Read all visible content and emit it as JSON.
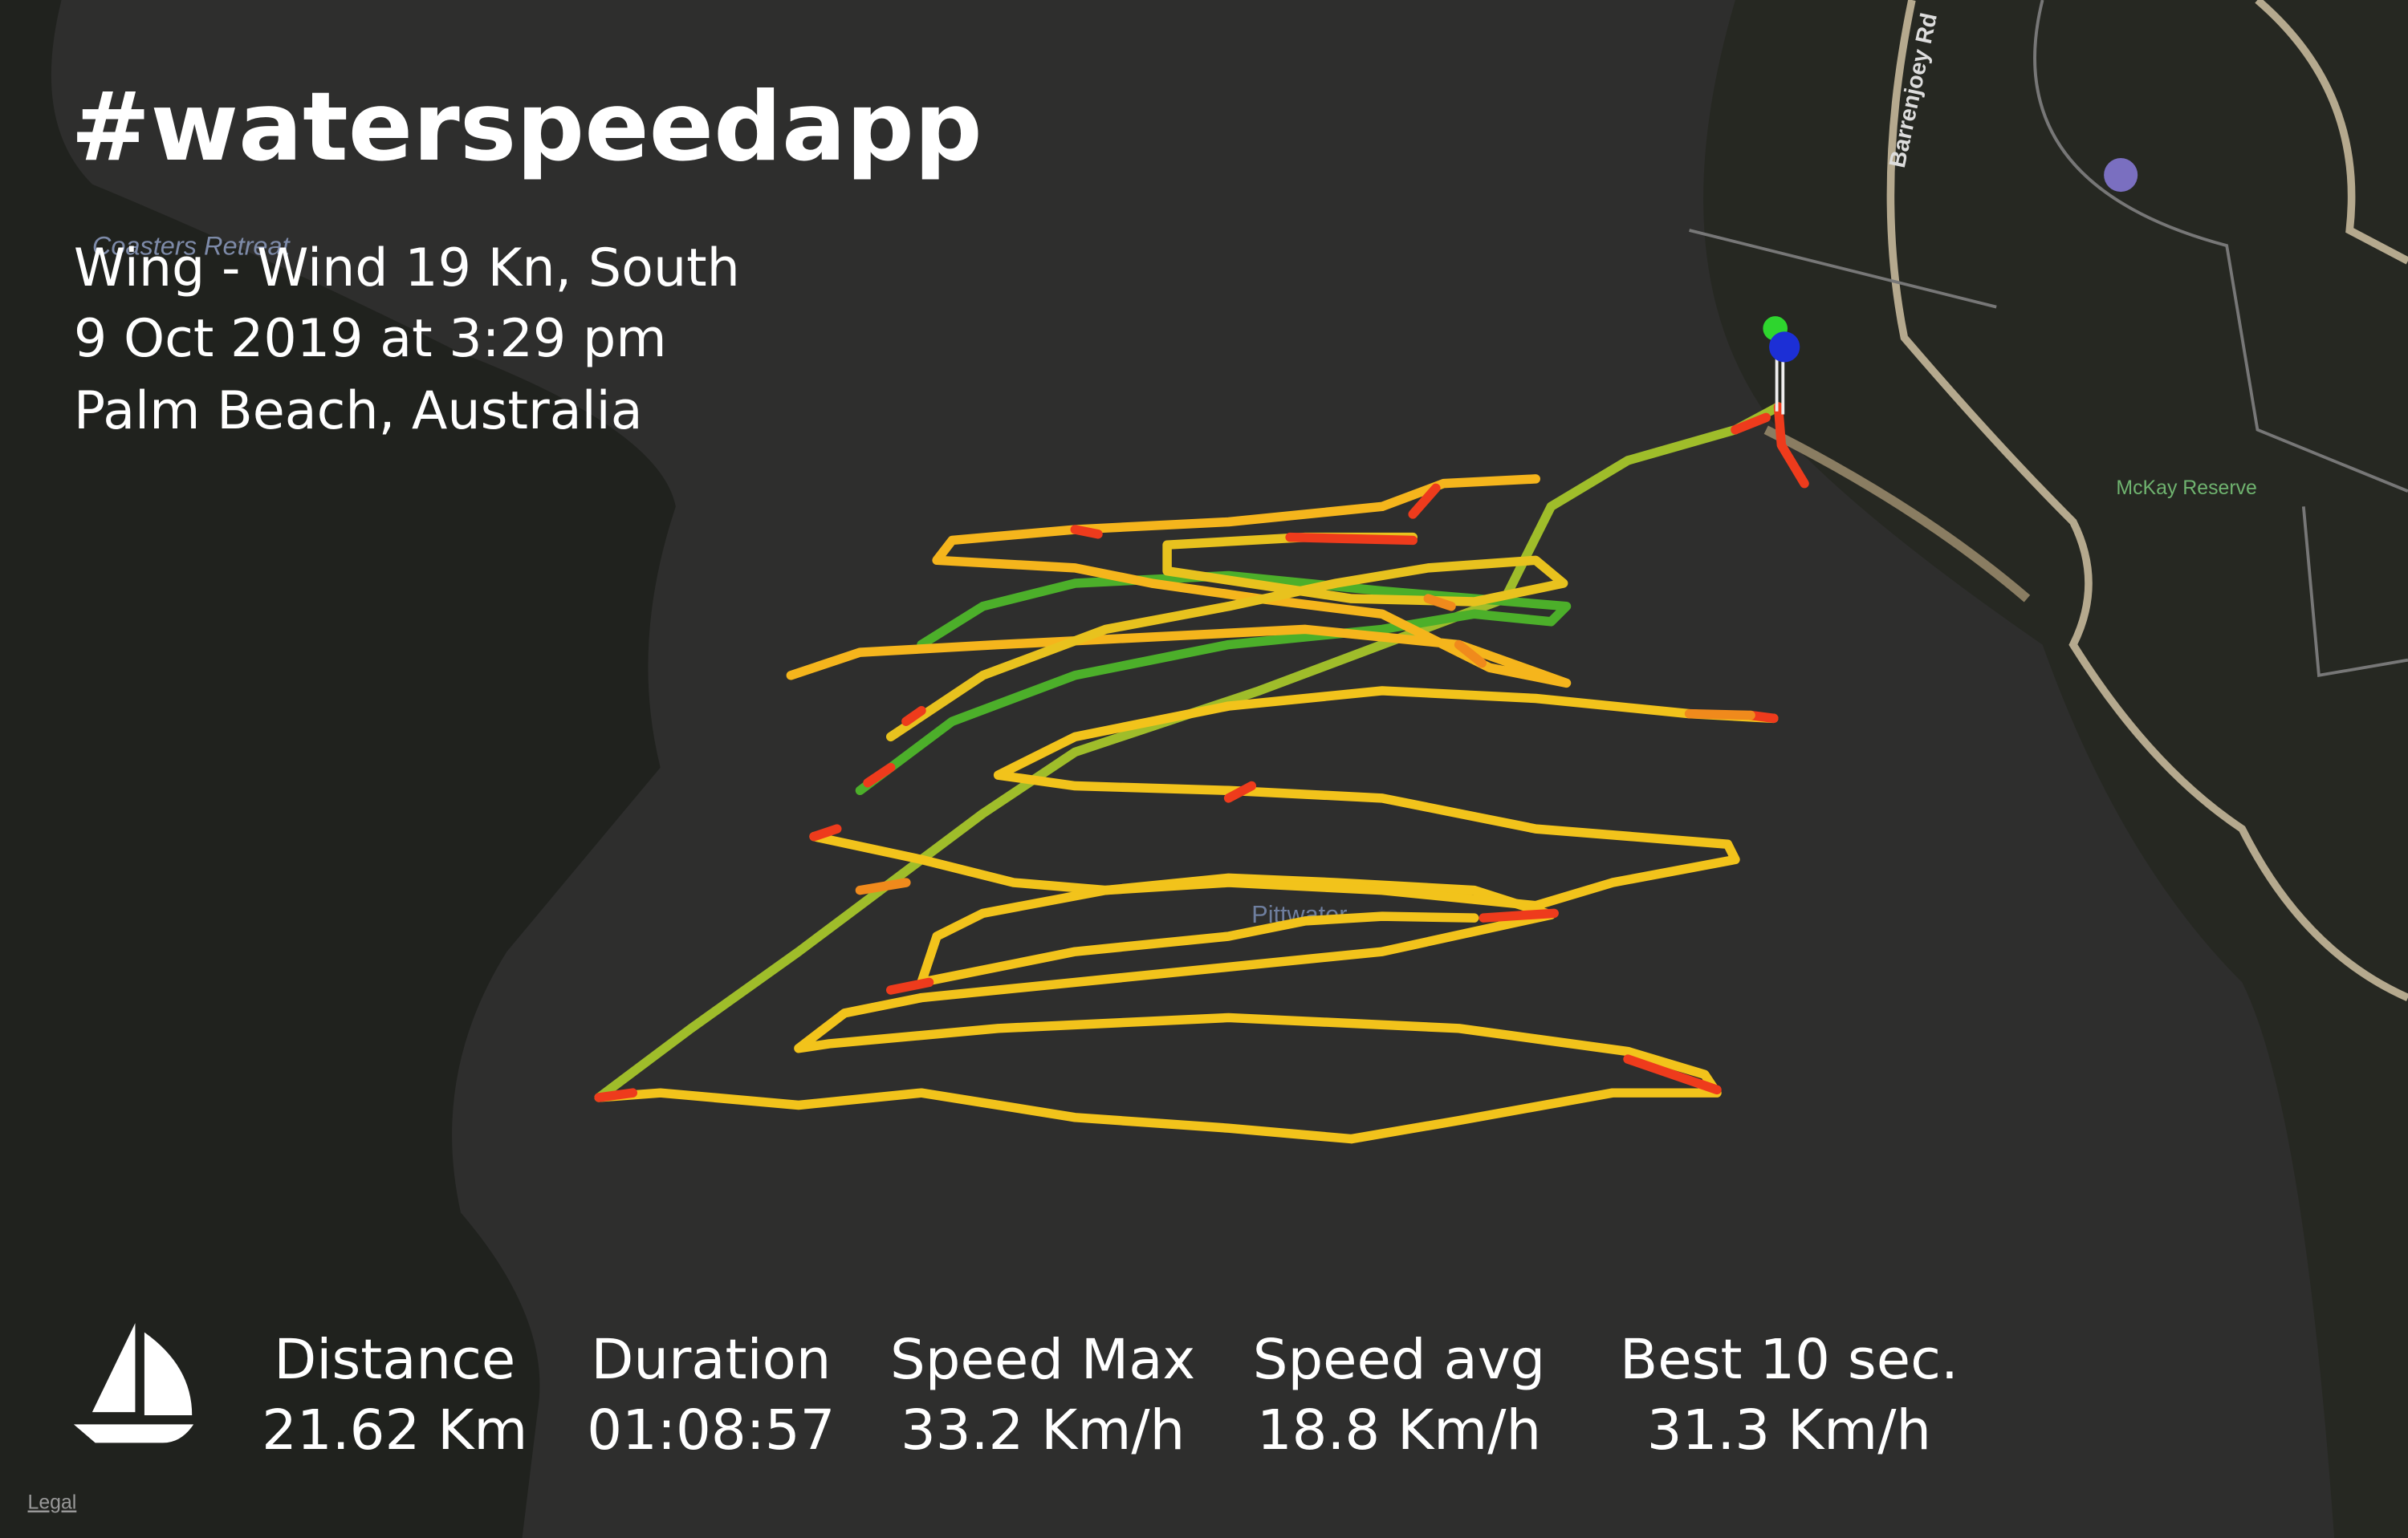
{
  "header": {
    "title": "#waterspeedapp",
    "lines": [
      "Wing - Wind 19 Kn, South",
      "9 Oct 2019 at 3:29 pm",
      "Palm Beach, Australia"
    ]
  },
  "map_labels": [
    "Barrenjoey Rd",
    "McKay Reserve",
    "Coasters Retreat",
    "Pittwater"
  ],
  "stats": [
    {
      "label": "Distance",
      "value": "21.62 Km"
    },
    {
      "label": "Duration",
      "value": "01:08:57"
    },
    {
      "label": "Speed Max",
      "value": "33.2 Km/h"
    },
    {
      "label": "Speed avg",
      "value": "18.8 Km/h"
    },
    {
      "label": "Best 10 sec.",
      "value": "31.3 Km/h"
    }
  ],
  "legal": "Legal"
}
